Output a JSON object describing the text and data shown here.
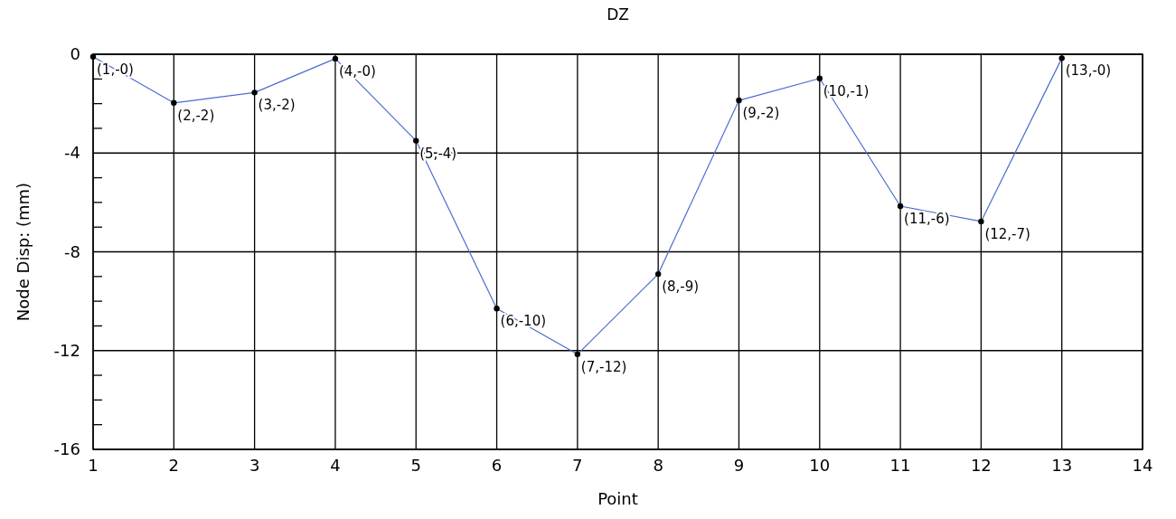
{
  "chart_data": {
    "type": "line",
    "title": "DZ",
    "xlabel": "Point",
    "ylabel": "Node Disp: (mm)",
    "x": [
      1,
      2,
      3,
      4,
      5,
      6,
      7,
      8,
      9,
      10,
      11,
      12,
      13
    ],
    "series": [
      {
        "color": "#4a6ccf",
        "values": [
          -0.1,
          -1.97,
          -1.55,
          -0.18,
          -3.5,
          -10.3,
          -12.15,
          -8.9,
          -1.87,
          -0.98,
          -6.15,
          -6.77,
          -0.16
        ],
        "value_labels": [
          "(1,-0)",
          "(2,-2)",
          "(3,-2)",
          "(4,-0)",
          "(5,-4)",
          "(6,-10)",
          "(7,-12)",
          "(8,-9)",
          "(9,-2)",
          "(10,-1)",
          "(11,-6)",
          "(12,-7)",
          "(13,-0)"
        ]
      }
    ],
    "xlim": [
      1,
      14
    ],
    "xticks": [
      1,
      2,
      3,
      4,
      5,
      6,
      7,
      8,
      9,
      10,
      11,
      12,
      13,
      14
    ],
    "ylim": [
      -16,
      0
    ],
    "yticks": [
      0,
      {
        "value": -1,
        "label": null
      },
      {
        "value": -2,
        "label": null
      },
      {
        "value": -3,
        "label": null
      },
      -4,
      {
        "value": -5,
        "label": null
      },
      {
        "value": -6,
        "label": null
      },
      {
        "value": -7,
        "label": null
      },
      -8,
      {
        "value": -9,
        "label": null
      },
      {
        "value": -10,
        "label": null
      },
      {
        "value": -11,
        "label": null
      },
      -12,
      {
        "value": -13,
        "label": null
      },
      {
        "value": -14,
        "label": null
      },
      {
        "value": -15,
        "label": null
      },
      -16
    ],
    "grid": true,
    "marker": "circle",
    "line_style": "solid"
  }
}
